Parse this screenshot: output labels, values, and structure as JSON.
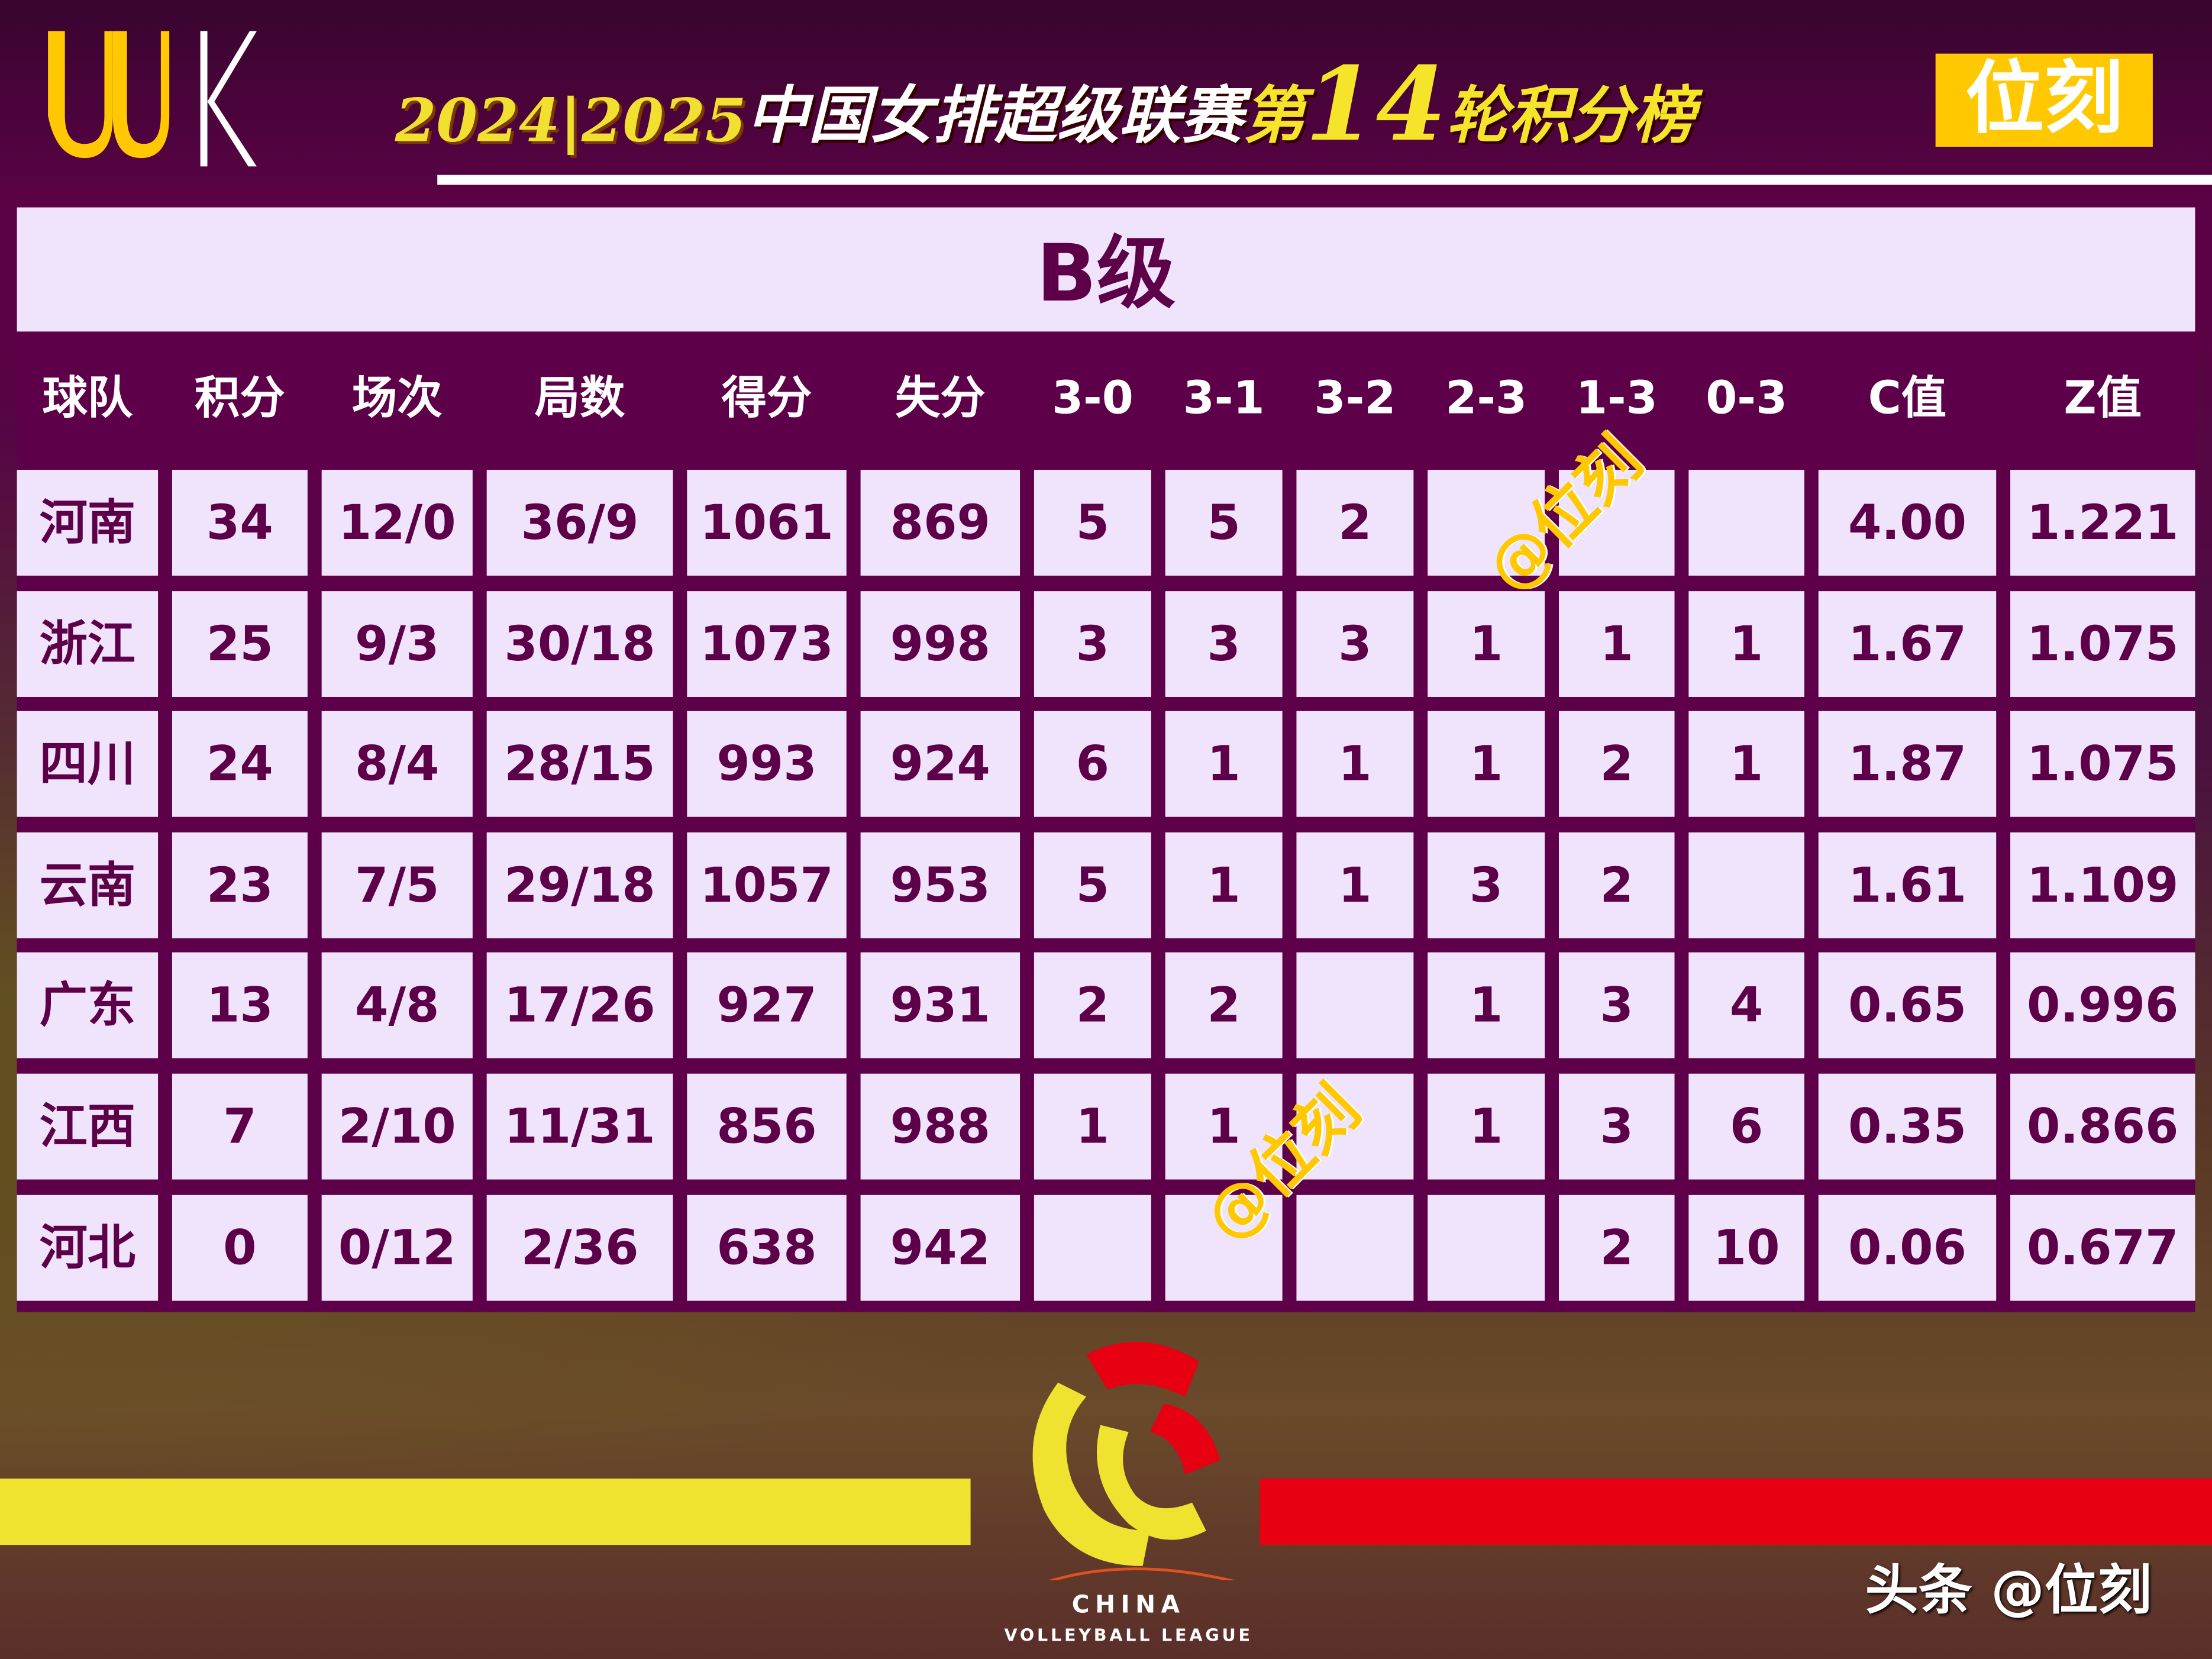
{
  "header": {
    "logo_text": "UUK",
    "year": "2024|2025",
    "title_main": "中国女排超级联赛",
    "title_di": "第",
    "round": "14",
    "title_tail": "轮积分榜",
    "brand": "位刻"
  },
  "table": {
    "grade": "B级",
    "columns": [
      "球队",
      "积分",
      "场次",
      "局数",
      "得分",
      "失分",
      "3-0",
      "3-1",
      "3-2",
      "2-3",
      "1-3",
      "0-3",
      "C值",
      "Z值"
    ],
    "rows": [
      [
        "河南",
        "34",
        "12/0",
        "36/9",
        "1061",
        "869",
        "5",
        "5",
        "2",
        "",
        "",
        "",
        "4.00",
        "1.221"
      ],
      [
        "浙江",
        "25",
        "9/3",
        "30/18",
        "1073",
        "998",
        "3",
        "3",
        "3",
        "1",
        "1",
        "1",
        "1.67",
        "1.075"
      ],
      [
        "四川",
        "24",
        "8/4",
        "28/15",
        "993",
        "924",
        "6",
        "1",
        "1",
        "1",
        "2",
        "1",
        "1.87",
        "1.075"
      ],
      [
        "云南",
        "23",
        "7/5",
        "29/18",
        "1057",
        "953",
        "5",
        "1",
        "1",
        "3",
        "2",
        "",
        "1.61",
        "1.109"
      ],
      [
        "广东",
        "13",
        "4/8",
        "17/26",
        "927",
        "931",
        "2",
        "2",
        "",
        "1",
        "3",
        "4",
        "0.65",
        "0.996"
      ],
      [
        "江西",
        "7",
        "2/10",
        "11/31",
        "856",
        "988",
        "1",
        "1",
        "",
        "1",
        "3",
        "6",
        "0.35",
        "0.866"
      ],
      [
        "河北",
        "0",
        "0/12",
        "2/36",
        "638",
        "942",
        "",
        "",
        "",
        "",
        "2",
        "10",
        "0.06",
        "0.677"
      ]
    ]
  },
  "watermarks": [
    "@位刻",
    "@位刻"
  ],
  "footer": {
    "league_line1": "CHINA",
    "league_line2": "VOLLEYBALL LEAGUE",
    "credit": "头条 @位刻"
  },
  "colors": {
    "purple": "#5e0049",
    "cell": "#efe4fb",
    "yellow": "#efe32f",
    "red": "#e60012",
    "gold": "#ffc800"
  }
}
